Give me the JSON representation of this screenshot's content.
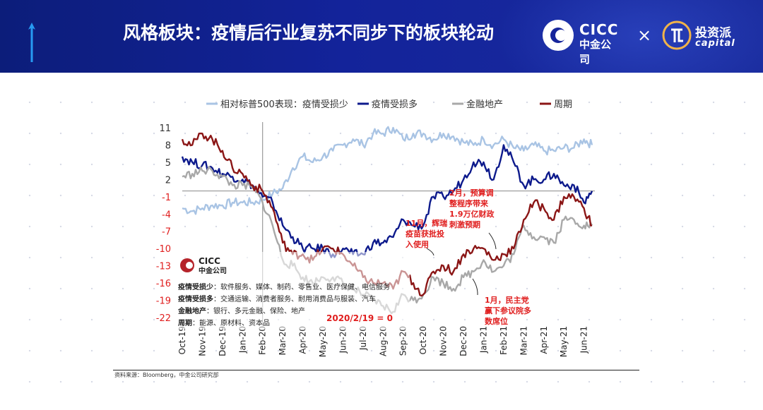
{
  "header": {
    "title": "风格板块：疫情后行业复苏不同步下的板块轮动",
    "logo_cicc_en": "CICC",
    "logo_cicc_cn": "中金公司",
    "times": "×",
    "logo_tzp_cn": "投资派",
    "logo_tzp_en": "capital"
  },
  "colors": {
    "header_bg": "#13239a",
    "series_light": "#a9c4e4",
    "series_navy": "#0d1a8c",
    "series_gray": "#a8a8a8",
    "series_maroon": "#8b1616",
    "annotation_red": "#e01e1e"
  },
  "chart_data": {
    "type": "line",
    "title": "",
    "xlabel": "",
    "ylabel": "",
    "ylim": [
      -22,
      11
    ],
    "yticks": [
      11,
      8,
      5,
      2,
      -1,
      -4,
      -7,
      -10,
      -13,
      -16,
      -19,
      -22
    ],
    "categories": [
      "Oct-19",
      "Nov-19",
      "Dec-19",
      "Jan-20",
      "Feb-20",
      "Mar-20",
      "Apr-20",
      "May-20",
      "Jun-20",
      "Jul-20",
      "Aug-20",
      "Sep-20",
      "Oct-20",
      "Nov-20",
      "Dec-20",
      "Jan-21",
      "Feb-21",
      "Mar-21",
      "Apr-21",
      "May-21",
      "Jun-21"
    ],
    "x": [
      0,
      0.5,
      1,
      1.5,
      2,
      2.5,
      3,
      3.5,
      4,
      4.5,
      5,
      5.5,
      6,
      6.5,
      7,
      7.5,
      8,
      8.5,
      9,
      9.5,
      10,
      10.5,
      11,
      11.5,
      12,
      12.5,
      13,
      13.5,
      14,
      14.5,
      15,
      15.5,
      16,
      16.5,
      17,
      17.5,
      18,
      18.5,
      19,
      19.5,
      20,
      20.4
    ],
    "series": [
      {
        "name": "相对标普500表现：疫情受损少",
        "color": "#a9c4e4",
        "values": [
          -3,
          -3.5,
          -3,
          -2.5,
          -2.5,
          -2,
          -2,
          -2,
          -1.5,
          -0.5,
          0.5,
          4,
          6,
          5,
          6,
          7,
          8,
          9,
          8,
          10,
          10,
          11,
          9,
          10,
          10,
          9,
          10,
          9.5,
          8.5,
          8,
          9,
          8,
          9,
          7.5,
          7,
          8,
          7,
          7,
          7.5,
          7.5,
          9,
          8
        ]
      },
      {
        "name": "疫情受损多",
        "color": "#0d1a8c",
        "values": [
          6,
          5,
          4.5,
          4,
          3,
          2.5,
          2,
          1,
          -1,
          -2,
          -6,
          -8,
          -10,
          -10,
          -10,
          -11,
          -10,
          -11,
          -11,
          -9,
          -9,
          -8,
          -5,
          -6,
          -6,
          -1,
          -1,
          0,
          2,
          5,
          5,
          2,
          8,
          5,
          1,
          2,
          2,
          3,
          1,
          1,
          -2,
          0
        ]
      },
      {
        "name": "金融地产",
        "color": "#a8a8a8",
        "values": [
          2.5,
          3,
          3.5,
          3.5,
          2.5,
          1,
          1,
          0.5,
          -2,
          -6,
          -12,
          -13,
          -15,
          -16,
          -15,
          -15,
          -16,
          -17,
          -18,
          -19,
          -20,
          -21,
          -18,
          -19,
          -18,
          -15,
          -16,
          -17,
          -15,
          -14,
          -12,
          -14,
          -13,
          -11,
          -6,
          -8,
          -8,
          -9,
          -5,
          -5,
          -6,
          -6
        ]
      },
      {
        "name": "周期",
        "color": "#8b1616",
        "values": [
          9,
          8,
          10,
          9,
          7,
          4,
          3,
          1,
          0,
          -3,
          -9,
          -11,
          -11,
          -12,
          -10,
          -10,
          -11,
          -13,
          -15,
          -16,
          -16,
          -17,
          -14,
          -16,
          -18,
          -14,
          -13,
          -14,
          -11,
          -10,
          -10,
          -12,
          -11,
          -10,
          -5,
          -2,
          -3,
          -5,
          -1,
          -1,
          -3,
          -6
        ]
      }
    ],
    "legend": [
      "相对标普500表现：疫情受损少",
      "疫情受损多",
      "金融地产",
      "周期"
    ],
    "legend_position": "top",
    "annotations": [
      {
        "text": "2020/2/19 = 0",
        "x": 4
      },
      {
        "lines": [
          "11月，辉瑞",
          "疫苗获批投",
          "入使用"
        ]
      },
      {
        "lines": [
          "2月，预算调",
          "整程序带来",
          "1.9万亿财政",
          "刺激预期"
        ]
      },
      {
        "lines": [
          "1月，民主党",
          "赢下参议院多",
          "数席位"
        ]
      }
    ],
    "info_box": {
      "logo_en": "CICC",
      "logo_cn": "中金公司",
      "rows": [
        {
          "label": "疫情受损少",
          "text": "：软件服务、媒体、制药、零售业、医疗保健、电信服务"
        },
        {
          "label": "疫情受损多",
          "text": "：交通运输、消费者服务、耐用消费品与服装、汽车"
        },
        {
          "label": "金融地产",
          "text": "：银行、多元金融、保险、地产"
        },
        {
          "label": "周期",
          "text": "：能源、原材料、资本品"
        }
      ]
    }
  },
  "footer": {
    "source": "资料来源：Bloomberg，中金公司研究部"
  }
}
